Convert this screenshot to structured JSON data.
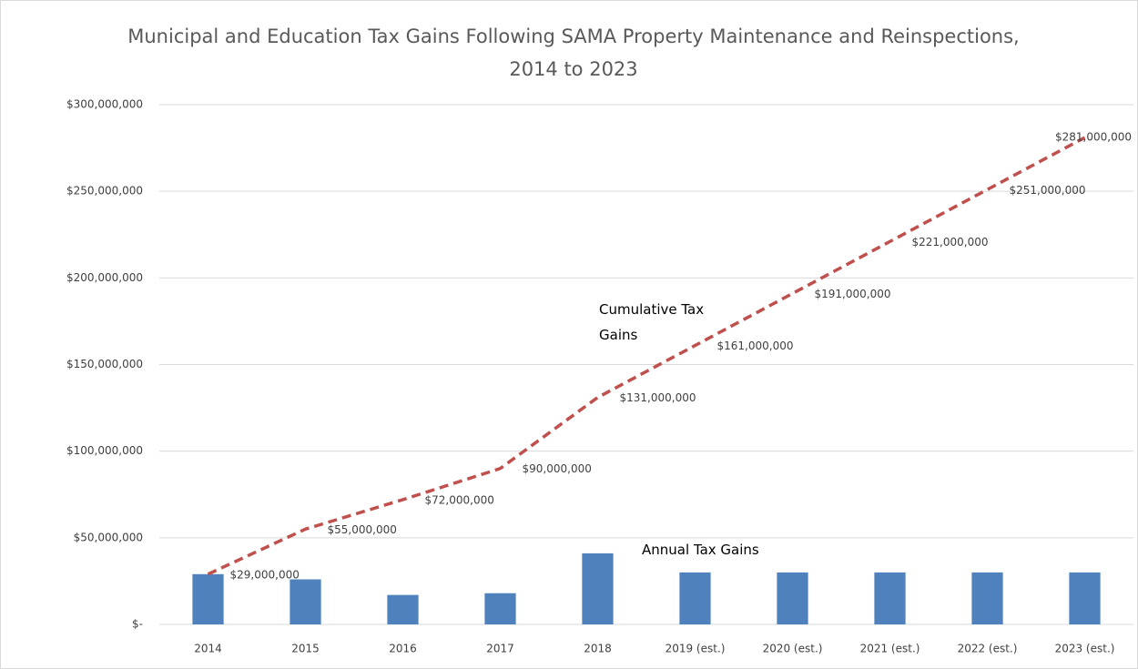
{
  "chart_data": {
    "type": "bar-line",
    "title": "Municipal and Education Tax Gains Following SAMA Property Maintenance and Reinspections, 2014 to 2023",
    "categories": [
      "2014",
      "2015",
      "2016",
      "2017",
      "2018",
      "2019 (est.)",
      "2020 (est.)",
      "2021 (est.)",
      "2022 (est.)",
      "2023 (est.)"
    ],
    "series": [
      {
        "name": "Annual Tax Gains",
        "type": "bar",
        "color": "#4f81bd",
        "values": [
          29000000,
          26000000,
          17000000,
          18000000,
          41000000,
          30000000,
          30000000,
          30000000,
          30000000,
          30000000
        ]
      },
      {
        "name": "Cumulative Tax Gains",
        "type": "line",
        "color": "#c0504d",
        "dashed": true,
        "values": [
          29000000,
          55000000,
          72000000,
          90000000,
          131000000,
          161000000,
          191000000,
          221000000,
          251000000,
          281000000
        ],
        "value_labels": [
          "$29,000,000",
          "$55,000,000",
          "$72,000,000",
          "$90,000,000",
          "$131,000,000",
          "$161,000,000",
          "$191,000,000",
          "$221,000,000",
          "$251,000,000",
          "$281,000,000"
        ]
      }
    ],
    "ylim": [
      0,
      300000000
    ],
    "yticks": [
      {
        "value": 0,
        "label": "$-"
      },
      {
        "value": 50000000,
        "label": "$50,000,000"
      },
      {
        "value": 100000000,
        "label": "$100,000,000"
      },
      {
        "value": 150000000,
        "label": "$150,000,000"
      },
      {
        "value": 200000000,
        "label": "$200,000,000"
      },
      {
        "value": 250000000,
        "label": "$250,000,000"
      },
      {
        "value": 300000000,
        "label": "$300,000,000"
      }
    ],
    "grid": true
  }
}
